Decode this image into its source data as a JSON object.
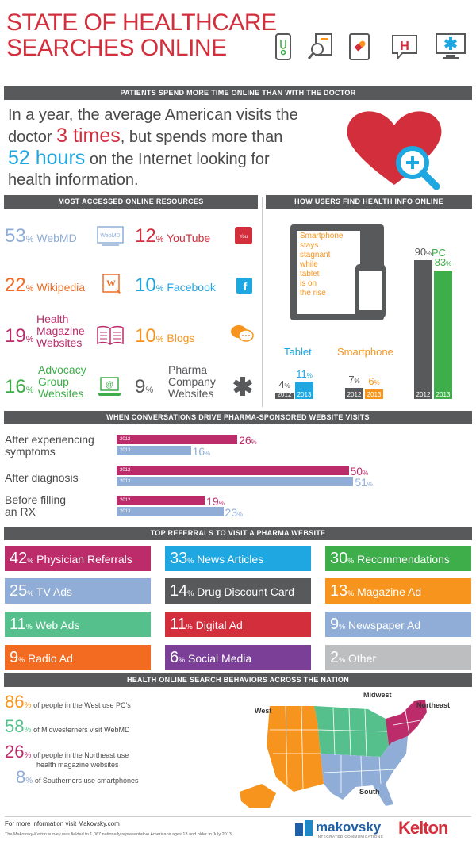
{
  "header": {
    "title_line1": "STATE OF HEALTHCARE",
    "title_line2": "SEARCHES ONLINE",
    "icons": [
      "smartphone-stethoscope-icon",
      "magnifier-document-icon",
      "tablet-pill-icon",
      "hospital-chat-icon",
      "computer-medical-icon"
    ]
  },
  "section1": {
    "banner": "PATIENTS SPEND MORE TIME ONLINE THAN WITH THE DOCTOR",
    "text_a": "In a year, the average American visits the",
    "text_b": "doctor ",
    "visits": "3 times",
    "text_c": ", but spends more than",
    "hours": "52 hours",
    "text_d": " on the Internet looking for",
    "text_e": "health information."
  },
  "resources": {
    "banner": "MOST ACCESSED ONLINE RESOURCES",
    "items": [
      {
        "value": "53",
        "pct": "%",
        "label": "WebMD",
        "icon": "webmd-icon",
        "color": "#8fadd6"
      },
      {
        "value": "12",
        "pct": "%",
        "label": "YouTube",
        "icon": "youtube-icon",
        "color": "#d22e3c"
      },
      {
        "value": "22",
        "pct": "%",
        "label": "Wikipedia",
        "icon": "wikipedia-icon",
        "color": "#f26b21"
      },
      {
        "value": "10",
        "pct": "%",
        "label": "Facebook",
        "icon": "facebook-icon",
        "color": "#1ea7e1"
      },
      {
        "value": "19",
        "pct": "%",
        "label1": "Health",
        "label2": "Magazine",
        "label3": "Websites",
        "icon": "magazine-icon",
        "color": "#bc2c6b"
      },
      {
        "value": "10",
        "pct": "%",
        "label": "Blogs",
        "icon": "chat-bubbles-icon",
        "color": "#f7941d"
      },
      {
        "value": "16",
        "pct": "%",
        "label1": "Advocacy",
        "label2": "Group",
        "label3": "Websites",
        "icon": "laptop-at-icon",
        "color": "#3dae49"
      },
      {
        "value": "9",
        "pct": "%",
        "label1": "Pharma",
        "label2": "Company",
        "label3": "Websites",
        "icon": "medical-star-icon",
        "color": "#58595b"
      }
    ]
  },
  "devices": {
    "banner": "HOW USERS FIND HEALTH INFO ONLINE",
    "callout": [
      "Smartphone",
      "stays",
      "stagnant",
      "while",
      "tablet",
      "is on",
      "the rise"
    ],
    "pc_label": "PC",
    "tablet_label": "Tablet",
    "smartphone_label": "Smartphone",
    "year_labels": [
      "2012",
      "2013"
    ],
    "pct_sign": "%"
  },
  "conversations": {
    "banner": "WHEN CONVERSATIONS DRIVE PHARMA-SPONSORED WEBSITE VISITS",
    "pct_sign": "%",
    "year_labels": [
      "2012",
      "2013"
    ],
    "categories": [
      {
        "line1": "After experiencing",
        "line2": "symptoms"
      },
      {
        "line1": "After diagnosis",
        "line2": ""
      },
      {
        "line1": "Before filling",
        "line2": "an RX"
      }
    ]
  },
  "referrals": {
    "banner": "TOP REFERRALS TO VISIT A PHARMA WEBSITE",
    "items": [
      {
        "value": "42",
        "pct": "%",
        "label": "Physician Referrals",
        "color": "#bc2c6b"
      },
      {
        "value": "33",
        "pct": "%",
        "label": "News Articles",
        "color": "#1ea7e1"
      },
      {
        "value": "30",
        "pct": "%",
        "label": "Recommendations",
        "color": "#3dae49"
      },
      {
        "value": "25",
        "pct": "%",
        "label": "TV Ads",
        "color": "#8fadd6"
      },
      {
        "value": "14",
        "pct": "%",
        "label": "Drug Discount Card",
        "color": "#58595b"
      },
      {
        "value": "13",
        "pct": "%",
        "label": "Magazine Ad",
        "color": "#f7941d"
      },
      {
        "value": "11",
        "pct": "%",
        "label": "Web Ads",
        "color": "#56c08c"
      },
      {
        "value": "11",
        "pct": "%",
        "label": "Digital Ad",
        "color": "#d22e3c"
      },
      {
        "value": "9",
        "pct": "%",
        "label": "Newspaper Ad",
        "color": "#8fadd6"
      },
      {
        "value": "9",
        "pct": "%",
        "label": "Radio Ad",
        "color": "#f26b21"
      },
      {
        "value": "6",
        "pct": "%",
        "label": "Social Media",
        "color": "#7b3f98"
      },
      {
        "value": "2",
        "pct": "%",
        "label": "Other",
        "color": "#bcbec0"
      }
    ]
  },
  "nation": {
    "banner": "HEALTH ONLINE SEARCH BEHAVIORS ACROSS THE NATION",
    "stats": [
      {
        "value": "86",
        "pct": "%",
        "line1": "of people in the West use PC's",
        "line2": "",
        "color": "#f7941d"
      },
      {
        "value": "58",
        "pct": "%",
        "line1": "of Midwesterners visit WebMD",
        "line2": "",
        "color": "#56c08c"
      },
      {
        "value": "26",
        "pct": "%",
        "line1": "of people in the Northeast use",
        "line2": "health magazine websites",
        "color": "#bc2c6b"
      },
      {
        "value": "8",
        "pct": "%",
        "line1": "of Southerners use smartphones",
        "line2": "",
        "color": "#8fadd6"
      }
    ],
    "regions": {
      "west": "West",
      "midwest": "Midwest",
      "northeast": "Northeast",
      "south": "South"
    }
  },
  "footer": {
    "more_info": "For more information visit Makovsky.com",
    "survey": "The Makovsky-Kelton survey was fielded to 1,067 nationally representative Americans ages 18 and older in July 2013.",
    "logo1": "makovsky",
    "logo1_sub": "INTEGRATED COMMUNICATIONS",
    "logo2": "Kelton"
  },
  "chart_data": [
    {
      "type": "bar",
      "title": "HOW USERS FIND HEALTH INFO ONLINE",
      "categories": [
        "Tablet",
        "Smartphone",
        "PC"
      ],
      "series": [
        {
          "name": "2012",
          "values": [
            4,
            7,
            90
          ]
        },
        {
          "name": "2013",
          "values": [
            11,
            6,
            83
          ]
        }
      ],
      "ylim": [
        0,
        100
      ]
    },
    {
      "type": "bar",
      "orientation": "horizontal",
      "title": "WHEN CONVERSATIONS DRIVE PHARMA-SPONSORED WEBSITE VISITS",
      "categories": [
        "After experiencing symptoms",
        "After diagnosis",
        "Before filling an RX"
      ],
      "series": [
        {
          "name": "2012",
          "values": [
            26,
            50,
            19
          ]
        },
        {
          "name": "2013",
          "values": [
            16,
            51,
            23
          ]
        }
      ],
      "xlim": [
        0,
        55
      ]
    }
  ]
}
